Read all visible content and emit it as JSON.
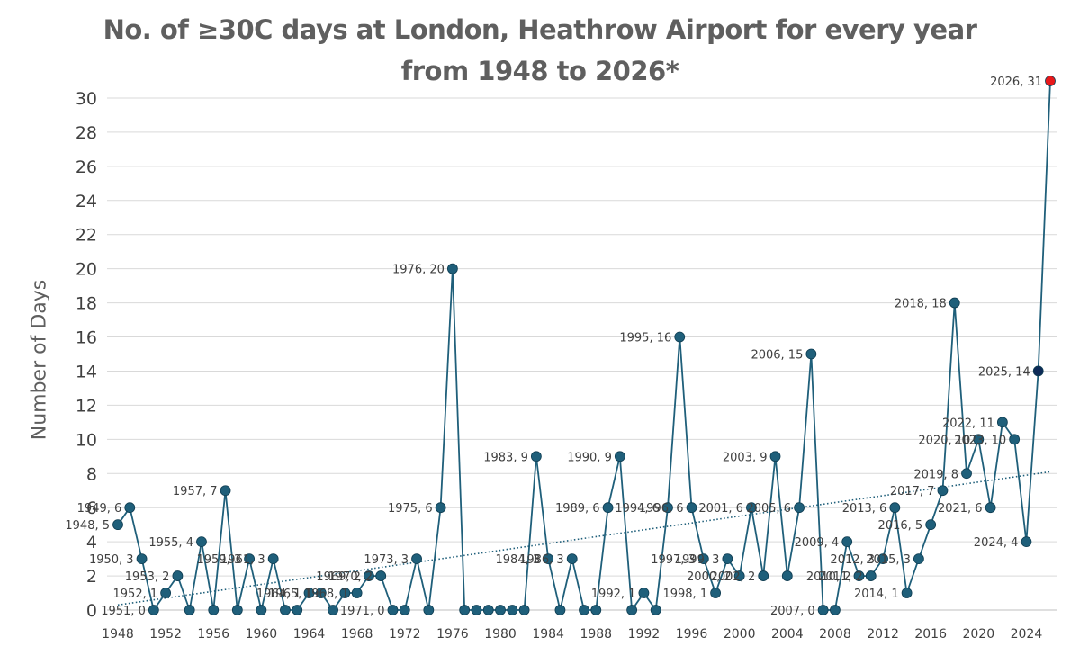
{
  "chart_data": {
    "type": "line",
    "title_line1": "No. of ≥30C days at London, Heathrow Airport for every year",
    "title_line2": "from 1948 to 2026*",
    "xlabel": "",
    "ylabel": "Number of Days",
    "xlim": [
      1948,
      2026
    ],
    "ylim": [
      0,
      31
    ],
    "xticks": [
      1948,
      1952,
      1956,
      1960,
      1964,
      1968,
      1972,
      1976,
      1980,
      1984,
      1988,
      1992,
      1996,
      2000,
      2004,
      2008,
      2012,
      2016,
      2020,
      2024
    ],
    "yticks": [
      0,
      2,
      4,
      6,
      8,
      10,
      12,
      14,
      16,
      18,
      20,
      22,
      24,
      26,
      28,
      30
    ],
    "grid": true,
    "trendline": {
      "style": "dotted",
      "from": [
        1948,
        0.3
      ],
      "to": [
        2026,
        8.1
      ]
    },
    "line_color": "#1f5f7a",
    "marker_color": "#1f5f7a",
    "highlight_colors": {
      "2025": "#0d2a57",
      "2026": "#e8191b"
    },
    "years": [
      1948,
      1949,
      1950,
      1951,
      1952,
      1953,
      1954,
      1955,
      1956,
      1957,
      1958,
      1959,
      1960,
      1961,
      1962,
      1963,
      1964,
      1965,
      1966,
      1967,
      1968,
      1969,
      1970,
      1971,
      1972,
      1973,
      1974,
      1975,
      1976,
      1977,
      1978,
      1979,
      1980,
      1981,
      1982,
      1983,
      1984,
      1985,
      1986,
      1987,
      1988,
      1989,
      1990,
      1991,
      1992,
      1993,
      1994,
      1995,
      1996,
      1997,
      1998,
      1999,
      2000,
      2001,
      2002,
      2003,
      2004,
      2005,
      2006,
      2007,
      2008,
      2009,
      2010,
      2011,
      2012,
      2013,
      2014,
      2015,
      2016,
      2017,
      2018,
      2019,
      2020,
      2021,
      2022,
      2023,
      2024,
      2025,
      2026
    ],
    "values": [
      5,
      6,
      3,
      0,
      1,
      2,
      0,
      4,
      0,
      7,
      0,
      3,
      0,
      3,
      0,
      0,
      1,
      1,
      0,
      1,
      1,
      2,
      2,
      0,
      0,
      3,
      0,
      6,
      20,
      0,
      0,
      0,
      0,
      0,
      0,
      9,
      3,
      0,
      3,
      0,
      0,
      6,
      9,
      0,
      1,
      0,
      6,
      16,
      6,
      3,
      1,
      3,
      2,
      6,
      2,
      9,
      2,
      6,
      15,
      0,
      0,
      4,
      2,
      2,
      3,
      6,
      1,
      3,
      5,
      7,
      18,
      8,
      10,
      6,
      11,
      10,
      4,
      14,
      31
    ],
    "data_labels": [
      {
        "x": 1948,
        "y": 5,
        "text": "1948, 5"
      },
      {
        "x": 1949,
        "y": 6,
        "text": "1949, 6"
      },
      {
        "x": 1950,
        "y": 3,
        "text": "1950, 3"
      },
      {
        "x": 1951,
        "y": 0,
        "text": "1951, 0"
      },
      {
        "x": 1952,
        "y": 1,
        "text": "1952, 1"
      },
      {
        "x": 1953,
        "y": 2,
        "text": "1953, 2"
      },
      {
        "x": 1955,
        "y": 4,
        "text": "1955, 4"
      },
      {
        "x": 1957,
        "y": 7,
        "text": "1957, 7"
      },
      {
        "x": 1959,
        "y": 3,
        "text": "1959, 3"
      },
      {
        "x": 1961,
        "y": 3,
        "text": "1961, 3"
      },
      {
        "x": 1964,
        "y": 1,
        "text": "1964, 1"
      },
      {
        "x": 1965,
        "y": 1,
        "text": "1965, 1"
      },
      {
        "x": 1968,
        "y": 1,
        "text": "1968, 1"
      },
      {
        "x": 1969,
        "y": 2,
        "text": "1969, 2"
      },
      {
        "x": 1970,
        "y": 2,
        "text": "1970, 2"
      },
      {
        "x": 1971,
        "y": 0,
        "text": "1971, 0"
      },
      {
        "x": 1973,
        "y": 3,
        "text": "1973, 3"
      },
      {
        "x": 1975,
        "y": 6,
        "text": "1975, 6"
      },
      {
        "x": 1976,
        "y": 20,
        "text": "1976, 20"
      },
      {
        "x": 1983,
        "y": 9,
        "text": "1983, 9"
      },
      {
        "x": 1984,
        "y": 3,
        "text": "1984, 3"
      },
      {
        "x": 1986,
        "y": 3,
        "text": "1986, 3"
      },
      {
        "x": 1989,
        "y": 6,
        "text": "1989, 6"
      },
      {
        "x": 1990,
        "y": 9,
        "text": "1990, 9"
      },
      {
        "x": 1992,
        "y": 1,
        "text": "1992, 1"
      },
      {
        "x": 1994,
        "y": 6,
        "text": "1994, 6"
      },
      {
        "x": 1995,
        "y": 16,
        "text": "1995, 16"
      },
      {
        "x": 1996,
        "y": 6,
        "text": "1996, 6"
      },
      {
        "x": 1997,
        "y": 3,
        "text": "1997, 3"
      },
      {
        "x": 1998,
        "y": 1,
        "text": "1998, 1"
      },
      {
        "x": 1999,
        "y": 3,
        "text": "1999, 3"
      },
      {
        "x": 2000,
        "y": 2,
        "text": "2000, 2"
      },
      {
        "x": 2001,
        "y": 6,
        "text": "2001, 6"
      },
      {
        "x": 2002,
        "y": 2,
        "text": "2002, 2"
      },
      {
        "x": 2003,
        "y": 9,
        "text": "2003, 9"
      },
      {
        "x": 2005,
        "y": 6,
        "text": "2005, 6"
      },
      {
        "x": 2006,
        "y": 15,
        "text": "2006, 15"
      },
      {
        "x": 2007,
        "y": 0,
        "text": "2007, 0"
      },
      {
        "x": 2009,
        "y": 4,
        "text": "2009, 4"
      },
      {
        "x": 2010,
        "y": 2,
        "text": "2010, 2"
      },
      {
        "x": 2011,
        "y": 2,
        "text": "2011, 2"
      },
      {
        "x": 2012,
        "y": 3,
        "text": "2012, 3"
      },
      {
        "x": 2013,
        "y": 6,
        "text": "2013, 6"
      },
      {
        "x": 2014,
        "y": 1,
        "text": "2014, 1"
      },
      {
        "x": 2015,
        "y": 3,
        "text": "2015, 3"
      },
      {
        "x": 2016,
        "y": 5,
        "text": "2016, 5"
      },
      {
        "x": 2017,
        "y": 7,
        "text": "2017, 7"
      },
      {
        "x": 2018,
        "y": 18,
        "text": "2018, 18"
      },
      {
        "x": 2019,
        "y": 8,
        "text": "2019, 8"
      },
      {
        "x": 2020,
        "y": 10,
        "text": "2020, 10"
      },
      {
        "x": 2021,
        "y": 6,
        "text": "2021, 6"
      },
      {
        "x": 2022,
        "y": 11,
        "text": "2022, 11"
      },
      {
        "x": 2023,
        "y": 10,
        "text": "2023, 10"
      },
      {
        "x": 2024,
        "y": 4,
        "text": "2024, 4"
      },
      {
        "x": 2025,
        "y": 14,
        "text": "2025, 14"
      },
      {
        "x": 2026,
        "y": 31,
        "text": "2026, 31"
      }
    ]
  }
}
